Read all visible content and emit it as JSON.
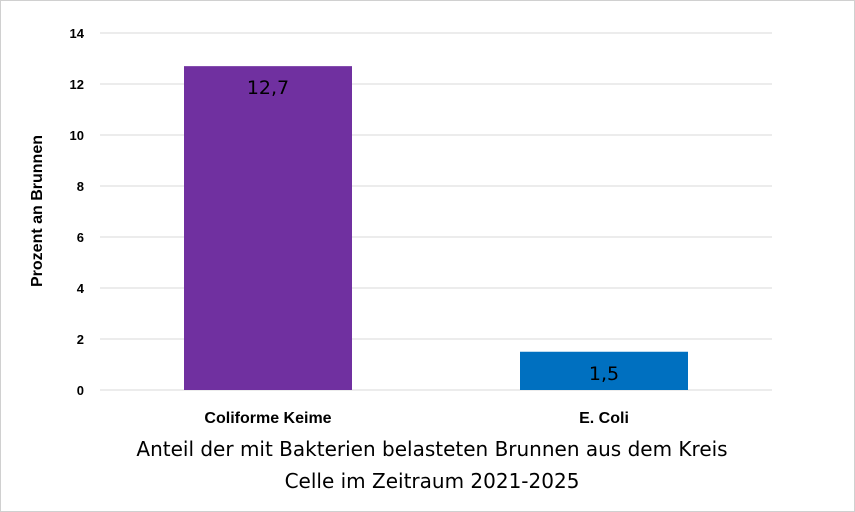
{
  "chart_data": {
    "type": "bar",
    "categories": [
      "Coliforme Keime",
      "E. Coli"
    ],
    "values": [
      12.7,
      1.5
    ],
    "data_labels": [
      "12,7",
      "1,5"
    ],
    "colors": [
      "#7030a0",
      "#0070c0"
    ],
    "ylabel": "Prozent an Brunnen",
    "xlabel_lines": [
      "Anteil der mit Bakterien belasteten Brunnen aus dem Kreis",
      "Celle im Zeitraum 2021-2025"
    ],
    "ylim": [
      0,
      14
    ],
    "yticks": [
      0,
      2,
      4,
      6,
      8,
      10,
      12,
      14
    ],
    "grid": true,
    "gridline_color": "#d9d9d9",
    "legend": "none"
  }
}
